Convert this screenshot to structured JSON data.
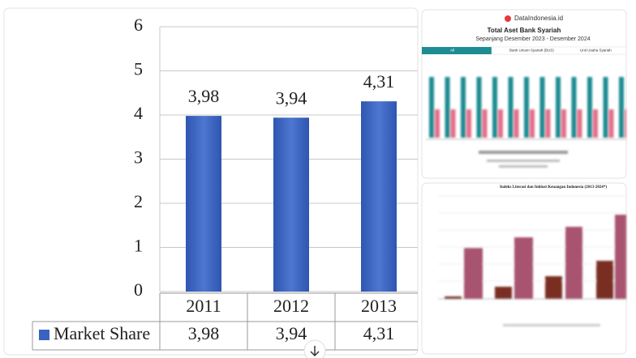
{
  "chart_data": {
    "type": "bar",
    "categories": [
      "2011",
      "2012",
      "2013"
    ],
    "series": [
      {
        "name": "Market Share",
        "color": "#3a62c0",
        "values": [
          3.98,
          3.94,
          4.31
        ],
        "value_labels": [
          "3,98",
          "3,94",
          "4,31"
        ]
      }
    ],
    "ylim": [
      0,
      6
    ],
    "yticks": [
      0,
      1,
      2,
      3,
      4,
      5,
      6
    ],
    "grid": true
  },
  "thumbnails": [
    {
      "brand": "DataIndonesia.id",
      "title": "Total Aset Bank Syariah",
      "subtitle": "Sepanjang Desember 2023 - Desember 2024",
      "tabs": [
        "All",
        "Bank Umum Syariah (BUS)",
        "Unit Usaha Syariah"
      ]
    },
    {
      "title": "Indeks Literasi dan Inklusi Keuangan Indonesia (2013-2024*)"
    }
  ]
}
